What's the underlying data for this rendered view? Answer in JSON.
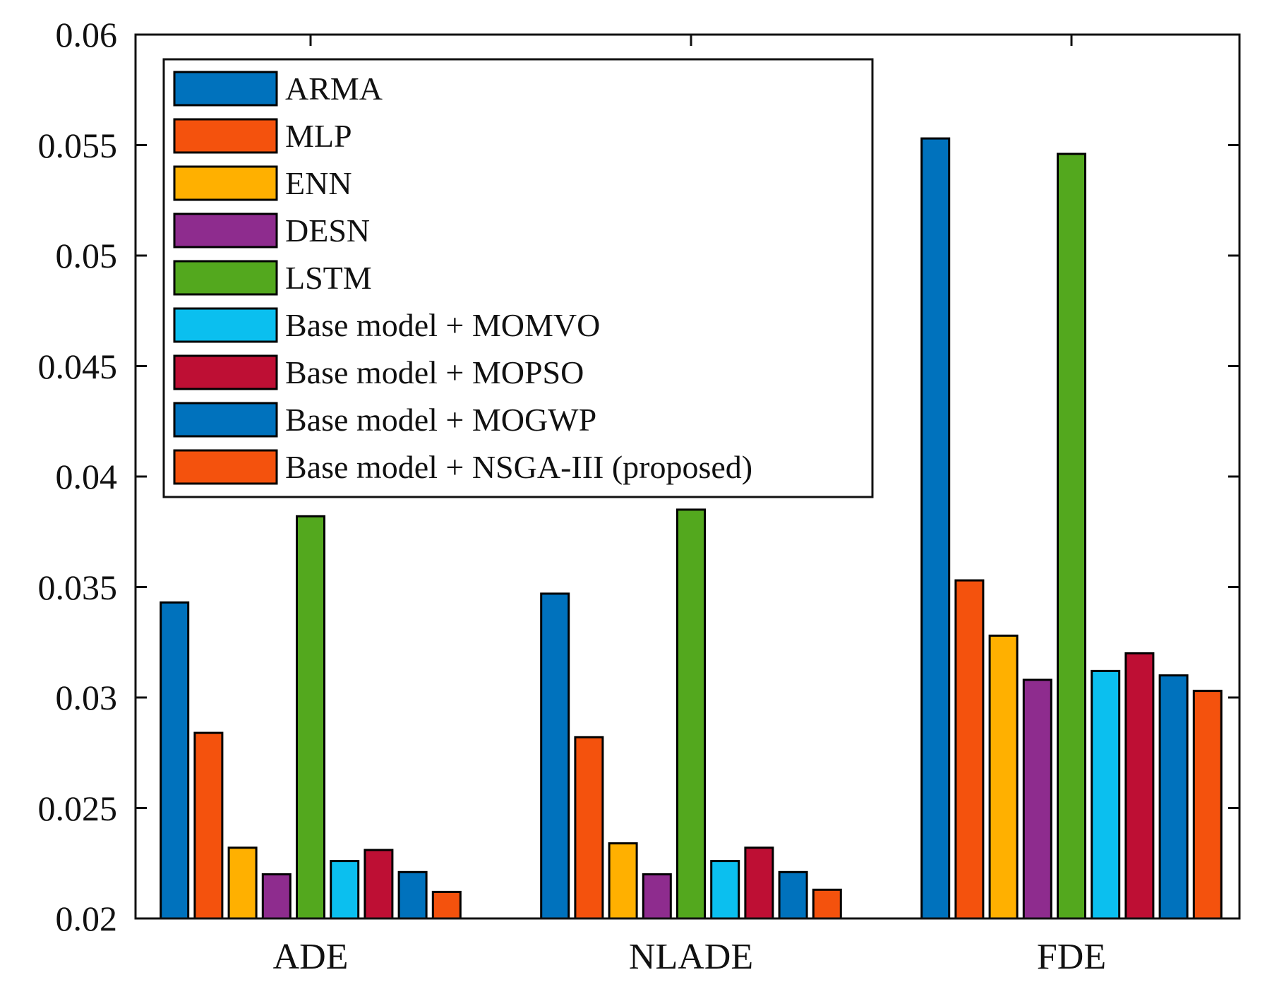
{
  "chart_data": {
    "type": "bar",
    "title": "",
    "xlabel": "",
    "ylabel": "",
    "ylim": [
      0.02,
      0.06
    ],
    "yticks": [
      "0.02",
      "0.025",
      "0.03",
      "0.035",
      "0.04",
      "0.045",
      "0.05",
      "0.055",
      "0.06"
    ],
    "categories": [
      "ADE",
      "NLADE",
      "FDE"
    ],
    "legend_position": "top-left",
    "series": [
      {
        "name": "ARMA",
        "color": "#0072BD",
        "values": [
          0.0343,
          0.0347,
          0.0553
        ]
      },
      {
        "name": "MLP",
        "color": "#F4520D",
        "values": [
          0.0284,
          0.0282,
          0.0353
        ]
      },
      {
        "name": "ENN",
        "color": "#FFB000",
        "values": [
          0.0232,
          0.0234,
          0.0328
        ]
      },
      {
        "name": "DESN",
        "color": "#8E2C8E",
        "values": [
          0.022,
          0.022,
          0.0308
        ]
      },
      {
        "name": "LSTM",
        "color": "#53A81E",
        "values": [
          0.0382,
          0.0385,
          0.0546
        ]
      },
      {
        "name": "Base model + MOMVO",
        "color": "#0BBFEF",
        "values": [
          0.0226,
          0.0226,
          0.0312
        ]
      },
      {
        "name": "Base model + MOPSO",
        "color": "#BE0F34",
        "values": [
          0.0231,
          0.0232,
          0.032
        ]
      },
      {
        "name": "Base model + MOGWP",
        "color": "#0072BD",
        "values": [
          0.0221,
          0.0221,
          0.031
        ]
      },
      {
        "name": "Base model + NSGA-III (proposed)",
        "color": "#F4520D",
        "values": [
          0.0212,
          0.0213,
          0.0303
        ]
      }
    ]
  }
}
